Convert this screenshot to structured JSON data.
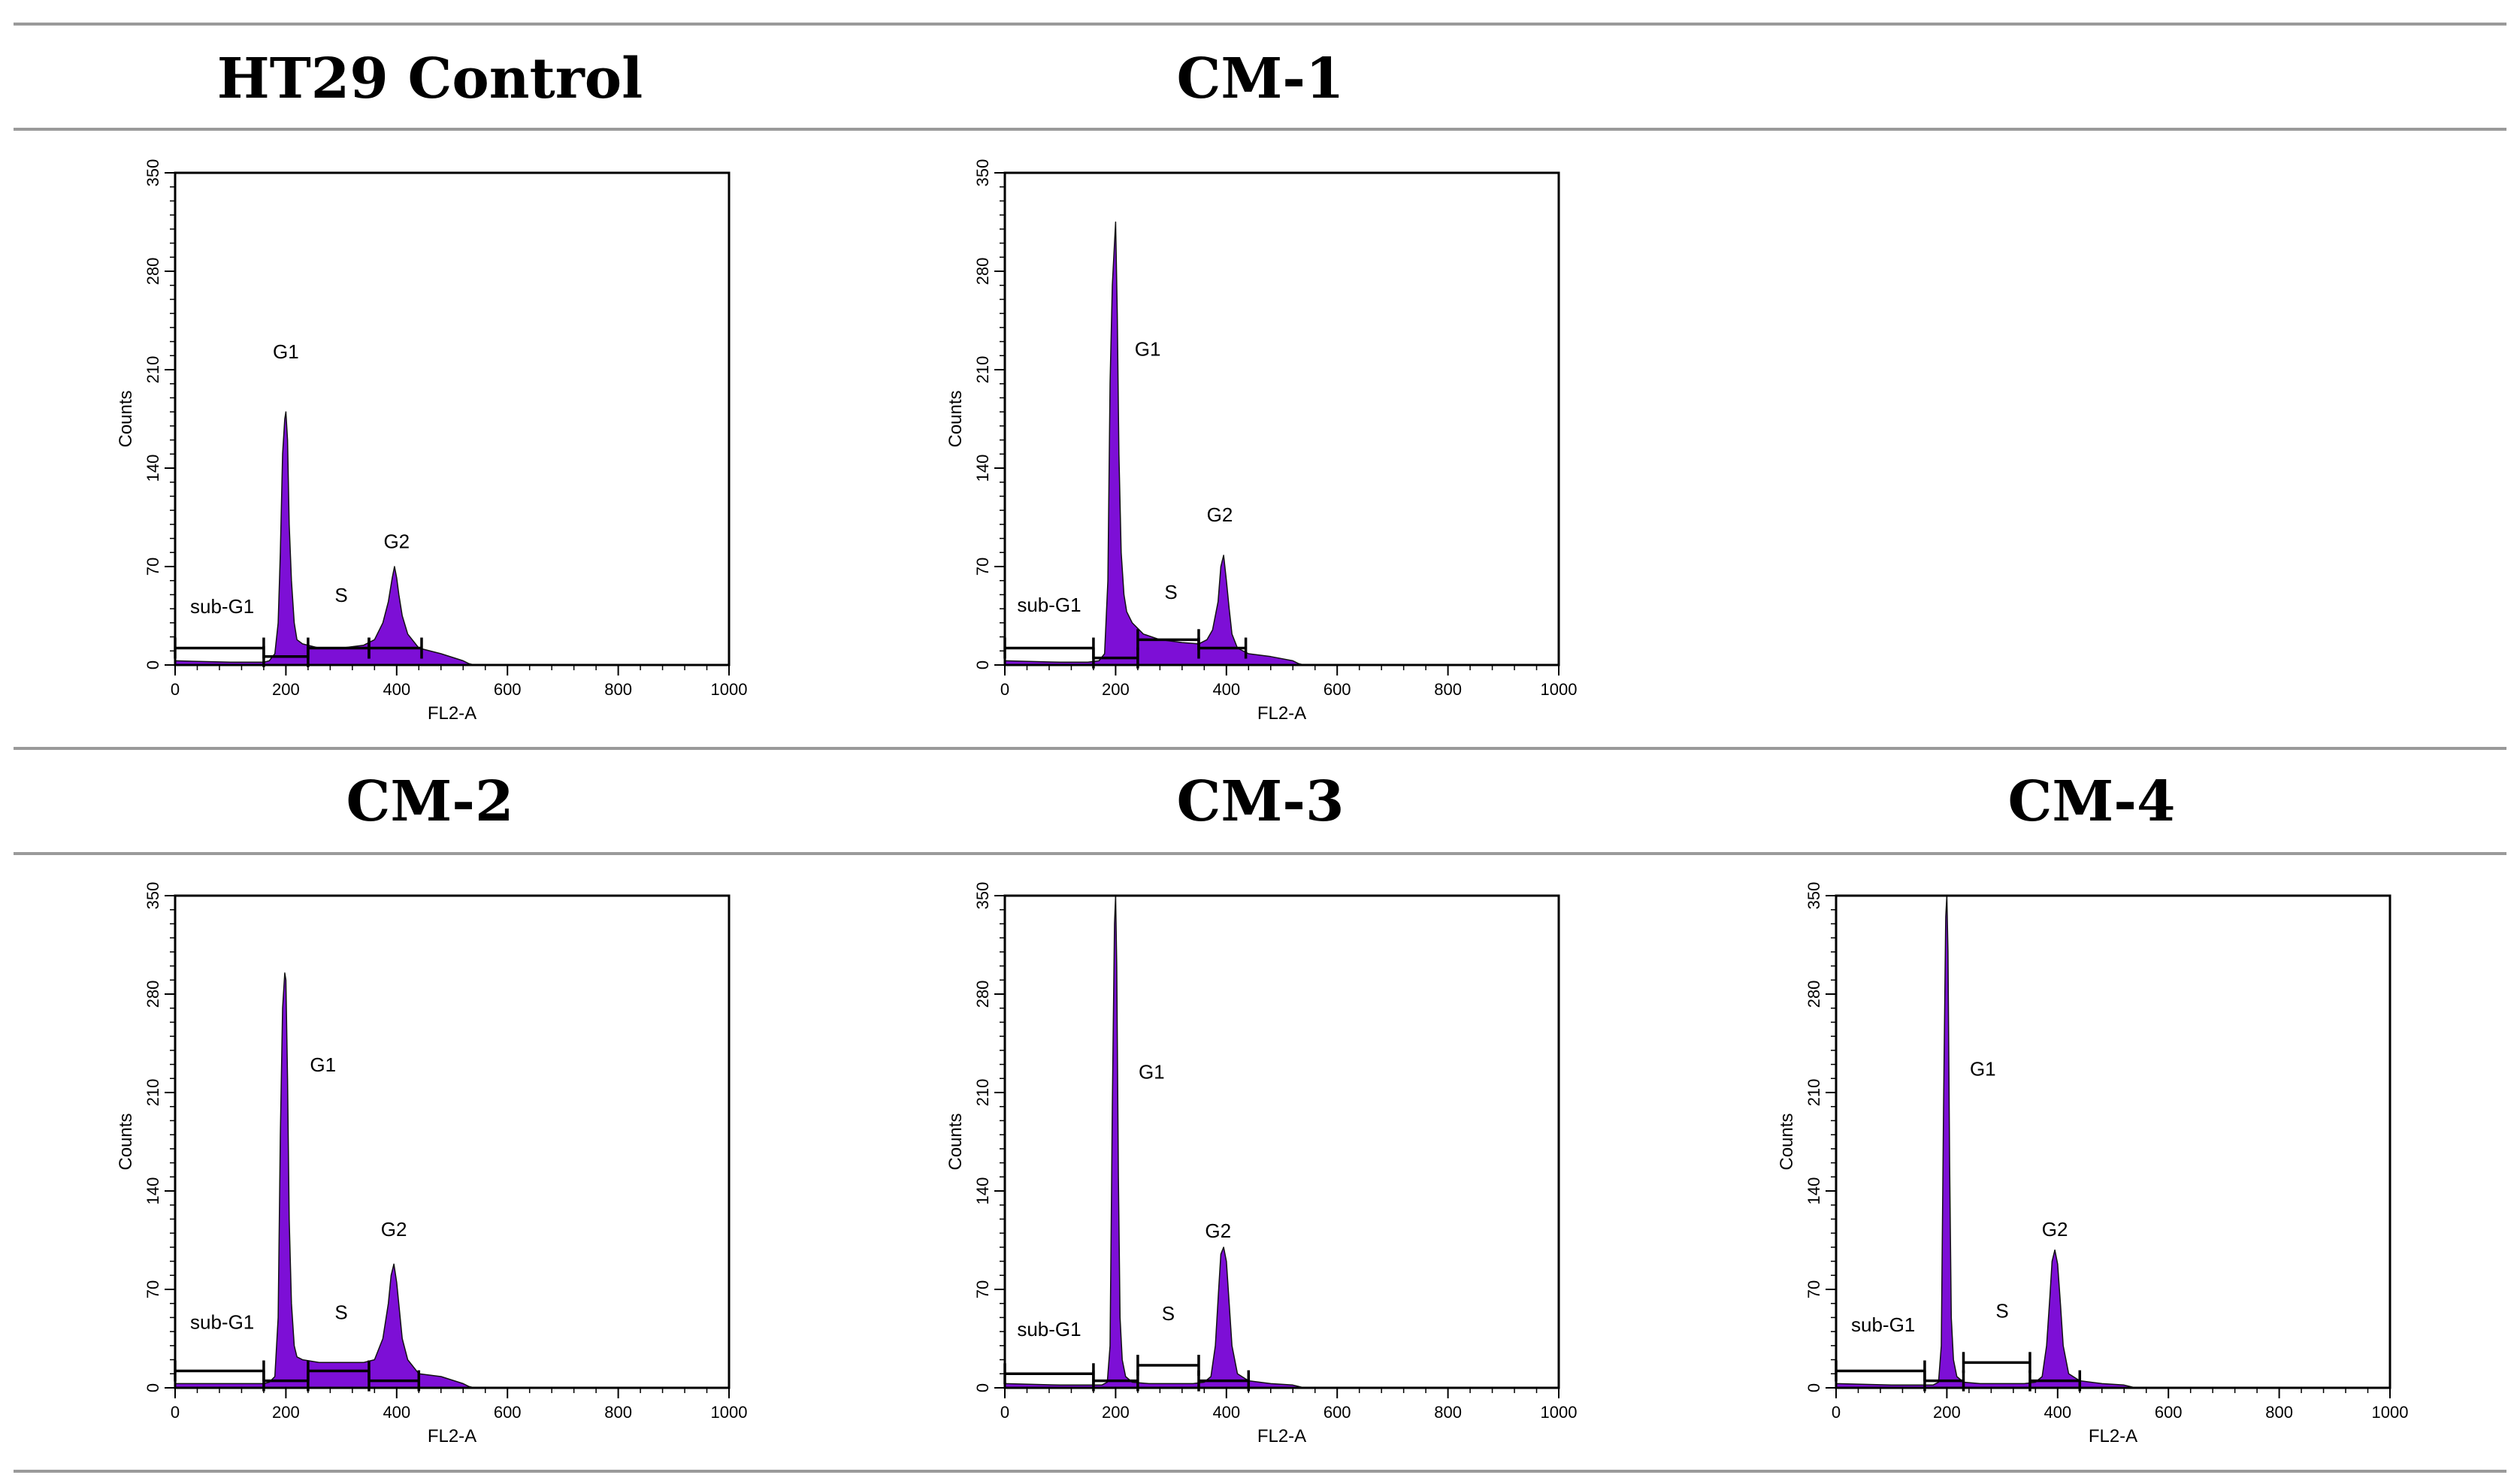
{
  "colors": {
    "fill": "#7d0fd6",
    "stroke": "#111111",
    "rule": "#9a9a9a"
  },
  "chart_data": [
    {
      "type": "area",
      "title": "HT29 Control",
      "xlabel": "FL2-A",
      "ylabel": "Counts",
      "xlim": [
        0,
        1000
      ],
      "ylim": [
        0,
        350
      ],
      "xticks": [
        "0",
        "200",
        "400",
        "600",
        "800",
        "1000"
      ],
      "yticks": [
        "0",
        "70",
        "140",
        "210",
        "280",
        "350"
      ],
      "x": [
        0,
        100,
        160,
        170,
        180,
        186,
        190,
        194,
        198,
        200,
        203,
        206,
        210,
        215,
        220,
        230,
        260,
        300,
        340,
        360,
        375,
        385,
        392,
        396,
        400,
        404,
        410,
        420,
        440,
        480,
        520,
        530,
        540,
        1000
      ],
      "y": [
        3,
        2,
        2,
        3,
        8,
        30,
        80,
        150,
        175,
        180,
        160,
        100,
        60,
        30,
        18,
        15,
        12,
        12,
        14,
        18,
        30,
        45,
        62,
        70,
        62,
        50,
        35,
        22,
        12,
        8,
        3,
        1,
        0,
        0
      ],
      "gates": [
        {
          "name": "sub-G1",
          "range": [
            0,
            160
          ],
          "level": 12
        },
        {
          "name": "G1",
          "range": [
            160,
            240
          ],
          "level": 6
        },
        {
          "name": "S",
          "range": [
            240,
            350
          ],
          "level": 12
        },
        {
          "name": "G2",
          "range": [
            350,
            445
          ],
          "level": 12
        }
      ],
      "labels": [
        {
          "text": "G1",
          "x": 200,
          "y": 218
        },
        {
          "text": "S",
          "x": 300,
          "y": 45
        },
        {
          "text": "G2",
          "x": 400,
          "y": 83
        },
        {
          "text": "sub-G1",
          "x": 85,
          "y": 37
        }
      ]
    },
    {
      "type": "area",
      "title": "CM-1",
      "xlabel": "FL2-A",
      "ylabel": "Counts",
      "xlim": [
        0,
        1000
      ],
      "ylim": [
        0,
        350
      ],
      "xticks": [
        "0",
        "200",
        "400",
        "600",
        "800",
        "1000"
      ],
      "yticks": [
        "0",
        "70",
        "140",
        "210",
        "280",
        "350"
      ],
      "x": [
        0,
        100,
        150,
        170,
        180,
        186,
        190,
        194,
        198,
        200,
        203,
        206,
        210,
        215,
        220,
        230,
        250,
        280,
        320,
        350,
        365,
        375,
        385,
        390,
        395,
        400,
        405,
        410,
        420,
        440,
        480,
        520,
        530,
        540,
        1000
      ],
      "y": [
        3,
        2,
        2,
        3,
        8,
        60,
        200,
        270,
        300,
        315,
        250,
        150,
        80,
        50,
        38,
        30,
        22,
        18,
        16,
        15,
        18,
        25,
        45,
        70,
        78,
        60,
        40,
        22,
        12,
        8,
        6,
        3,
        1,
        0,
        0
      ],
      "gates": [
        {
          "name": "sub-G1",
          "range": [
            0,
            160
          ],
          "level": 12
        },
        {
          "name": "G1",
          "range": [
            160,
            240
          ],
          "level": 5
        },
        {
          "name": "S",
          "range": [
            240,
            350
          ],
          "level": 18
        },
        {
          "name": "G2",
          "range": [
            350,
            435
          ],
          "level": 12
        }
      ],
      "labels": [
        {
          "text": "G1",
          "x": 258,
          "y": 220
        },
        {
          "text": "S",
          "x": 300,
          "y": 47
        },
        {
          "text": "G2",
          "x": 388,
          "y": 102
        },
        {
          "text": "sub-G1",
          "x": 80,
          "y": 38
        }
      ]
    },
    {
      "type": "area",
      "title": "CM-2",
      "xlabel": "FL2-A",
      "ylabel": "Counts",
      "xlim": [
        0,
        1000
      ],
      "ylim": [
        0,
        350
      ],
      "xticks": [
        "0",
        "200",
        "400",
        "600",
        "800",
        "1000"
      ],
      "yticks": [
        "0",
        "70",
        "140",
        "210",
        "280",
        "350"
      ],
      "x": [
        0,
        100,
        160,
        170,
        180,
        186,
        190,
        194,
        198,
        200,
        203,
        206,
        210,
        215,
        220,
        230,
        260,
        300,
        340,
        360,
        375,
        385,
        390,
        395,
        400,
        405,
        410,
        420,
        440,
        480,
        520,
        530,
        540,
        1000
      ],
      "y": [
        3,
        3,
        3,
        4,
        8,
        50,
        180,
        270,
        295,
        290,
        220,
        120,
        60,
        30,
        22,
        20,
        18,
        18,
        18,
        20,
        35,
        60,
        80,
        88,
        75,
        55,
        35,
        20,
        10,
        8,
        3,
        1,
        0,
        0
      ],
      "gates": [
        {
          "name": "sub-G1",
          "range": [
            0,
            160
          ],
          "level": 12
        },
        {
          "name": "G1",
          "range": [
            160,
            240
          ],
          "level": 5
        },
        {
          "name": "S",
          "range": [
            240,
            350
          ],
          "level": 12
        },
        {
          "name": "G2",
          "range": [
            350,
            440
          ],
          "level": 5
        }
      ],
      "labels": [
        {
          "text": "G1",
          "x": 267,
          "y": 225
        },
        {
          "text": "S",
          "x": 300,
          "y": 49
        },
        {
          "text": "G2",
          "x": 395,
          "y": 108
        },
        {
          "text": "sub-G1",
          "x": 85,
          "y": 42
        }
      ]
    },
    {
      "type": "area",
      "title": "CM-3",
      "xlabel": "FL2-A",
      "ylabel": "Counts",
      "xlim": [
        0,
        1000
      ],
      "ylim": [
        0,
        350
      ],
      "xticks": [
        "0",
        "200",
        "400",
        "600",
        "800",
        "1000"
      ],
      "yticks": [
        "0",
        "70",
        "140",
        "210",
        "280",
        "350"
      ],
      "x": [
        0,
        100,
        160,
        175,
        185,
        190,
        194,
        198,
        200,
        202,
        205,
        208,
        212,
        218,
        230,
        260,
        300,
        340,
        360,
        372,
        380,
        386,
        390,
        395,
        400,
        405,
        410,
        420,
        440,
        480,
        520,
        530,
        540,
        1000
      ],
      "y": [
        3,
        2,
        2,
        2,
        4,
        30,
        200,
        330,
        350,
        300,
        150,
        50,
        20,
        8,
        4,
        3,
        3,
        3,
        4,
        8,
        30,
        70,
        95,
        100,
        90,
        60,
        30,
        10,
        5,
        3,
        2,
        1,
        0,
        0
      ],
      "gates": [
        {
          "name": "sub-G1",
          "range": [
            0,
            160
          ],
          "level": 10
        },
        {
          "name": "G1",
          "range": [
            160,
            240
          ],
          "level": 5
        },
        {
          "name": "S",
          "range": [
            240,
            350
          ],
          "level": 16
        },
        {
          "name": "G2",
          "range": [
            350,
            440
          ],
          "level": 5
        }
      ],
      "labels": [
        {
          "text": "G1",
          "x": 265,
          "y": 220
        },
        {
          "text": "S",
          "x": 295,
          "y": 48
        },
        {
          "text": "G2",
          "x": 385,
          "y": 107
        },
        {
          "text": "sub-G1",
          "x": 80,
          "y": 37
        }
      ]
    },
    {
      "type": "area",
      "title": "CM-4",
      "xlabel": "FL2-A",
      "ylabel": "Counts",
      "xlim": [
        0,
        1000
      ],
      "ylim": [
        0,
        350
      ],
      "xticks": [
        "0",
        "200",
        "400",
        "600",
        "800",
        "1000"
      ],
      "yticks": [
        "0",
        "70",
        "140",
        "210",
        "280",
        "350"
      ],
      "x": [
        0,
        100,
        160,
        175,
        185,
        190,
        194,
        198,
        200,
        202,
        205,
        208,
        212,
        218,
        230,
        260,
        300,
        340,
        360,
        372,
        380,
        386,
        390,
        395,
        400,
        405,
        410,
        420,
        440,
        480,
        520,
        530,
        540,
        1000
      ],
      "y": [
        3,
        2,
        2,
        2,
        4,
        30,
        200,
        335,
        350,
        310,
        160,
        50,
        20,
        8,
        4,
        3,
        3,
        3,
        4,
        8,
        30,
        65,
        90,
        98,
        88,
        60,
        30,
        10,
        5,
        3,
        2,
        1,
        0,
        0
      ],
      "gates": [
        {
          "name": "sub-G1",
          "range": [
            0,
            160
          ],
          "level": 12
        },
        {
          "name": "G1",
          "range": [
            160,
            230
          ],
          "level": 5
        },
        {
          "name": "S",
          "range": [
            230,
            350
          ],
          "level": 18
        },
        {
          "name": "G2",
          "range": [
            350,
            440
          ],
          "level": 5
        }
      ],
      "labels": [
        {
          "text": "G1",
          "x": 265,
          "y": 222
        },
        {
          "text": "S",
          "x": 300,
          "y": 50
        },
        {
          "text": "G2",
          "x": 395,
          "y": 108
        },
        {
          "text": "sub-G1",
          "x": 85,
          "y": 40
        }
      ]
    }
  ]
}
